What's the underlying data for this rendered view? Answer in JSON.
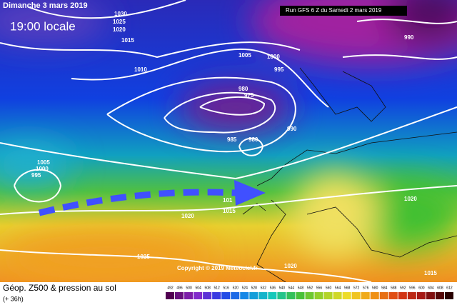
{
  "header": {
    "date": "Dimanche 3 mars 2019",
    "time": "19:00 locale",
    "run": "Run GFS 6 Z du Samedi 2 mars 2019"
  },
  "isobar_labels": [
    "1030",
    "1025",
    "1020",
    "1015",
    "1010",
    "1005",
    "1000",
    "995",
    "990",
    "980",
    "975",
    "990",
    "985",
    "980",
    "1005",
    "1000",
    "995",
    "101",
    "1015",
    "1020",
    "1025",
    "1020",
    "1020",
    "1015"
  ],
  "copyright": "Copyright © 2019 Meteociel.fr",
  "legend": {
    "title": "Géop. Z500 & pression au sol",
    "subtitle": "(+ 36h)",
    "scale": [
      492,
      496,
      500,
      504,
      508,
      512,
      516,
      520,
      524,
      528,
      532,
      536,
      540,
      544,
      548,
      552,
      556,
      560,
      564,
      568,
      572,
      576,
      580,
      584,
      588,
      592,
      596,
      600,
      604,
      608,
      612
    ]
  }
}
